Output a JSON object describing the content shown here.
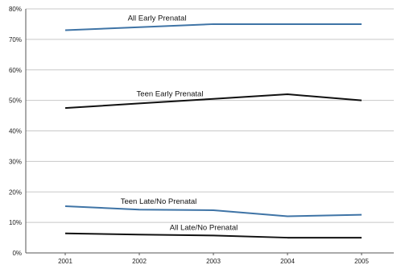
{
  "chart_data": {
    "type": "line",
    "title": "",
    "xlabel": "",
    "ylabel": "",
    "x": [
      "2001",
      "2002",
      "2003",
      "2004",
      "2005"
    ],
    "y_ticks": [
      "0%",
      "10%",
      "20%",
      "30%",
      "40%",
      "50%",
      "60%",
      "70%",
      "80%"
    ],
    "ylim": [
      0,
      80
    ],
    "grid": true,
    "legend": "none (series labeled directly on lines)",
    "series": [
      {
        "name": "All Early Prenatal",
        "color": "#3f74a6",
        "values": [
          73,
          74,
          75,
          75,
          75
        ]
      },
      {
        "name": "Teen Early Prenatal",
        "color": "#111111",
        "values": [
          47.5,
          49,
          50.5,
          52,
          50
        ]
      },
      {
        "name": "Teen Late/No Prenatal",
        "color": "#3f74a6",
        "values": [
          15.3,
          14.2,
          14,
          12,
          12.5
        ]
      },
      {
        "name": "All Late/No Prenatal",
        "color": "#111111",
        "values": [
          6.4,
          6,
          5.7,
          5,
          5
        ]
      }
    ]
  }
}
